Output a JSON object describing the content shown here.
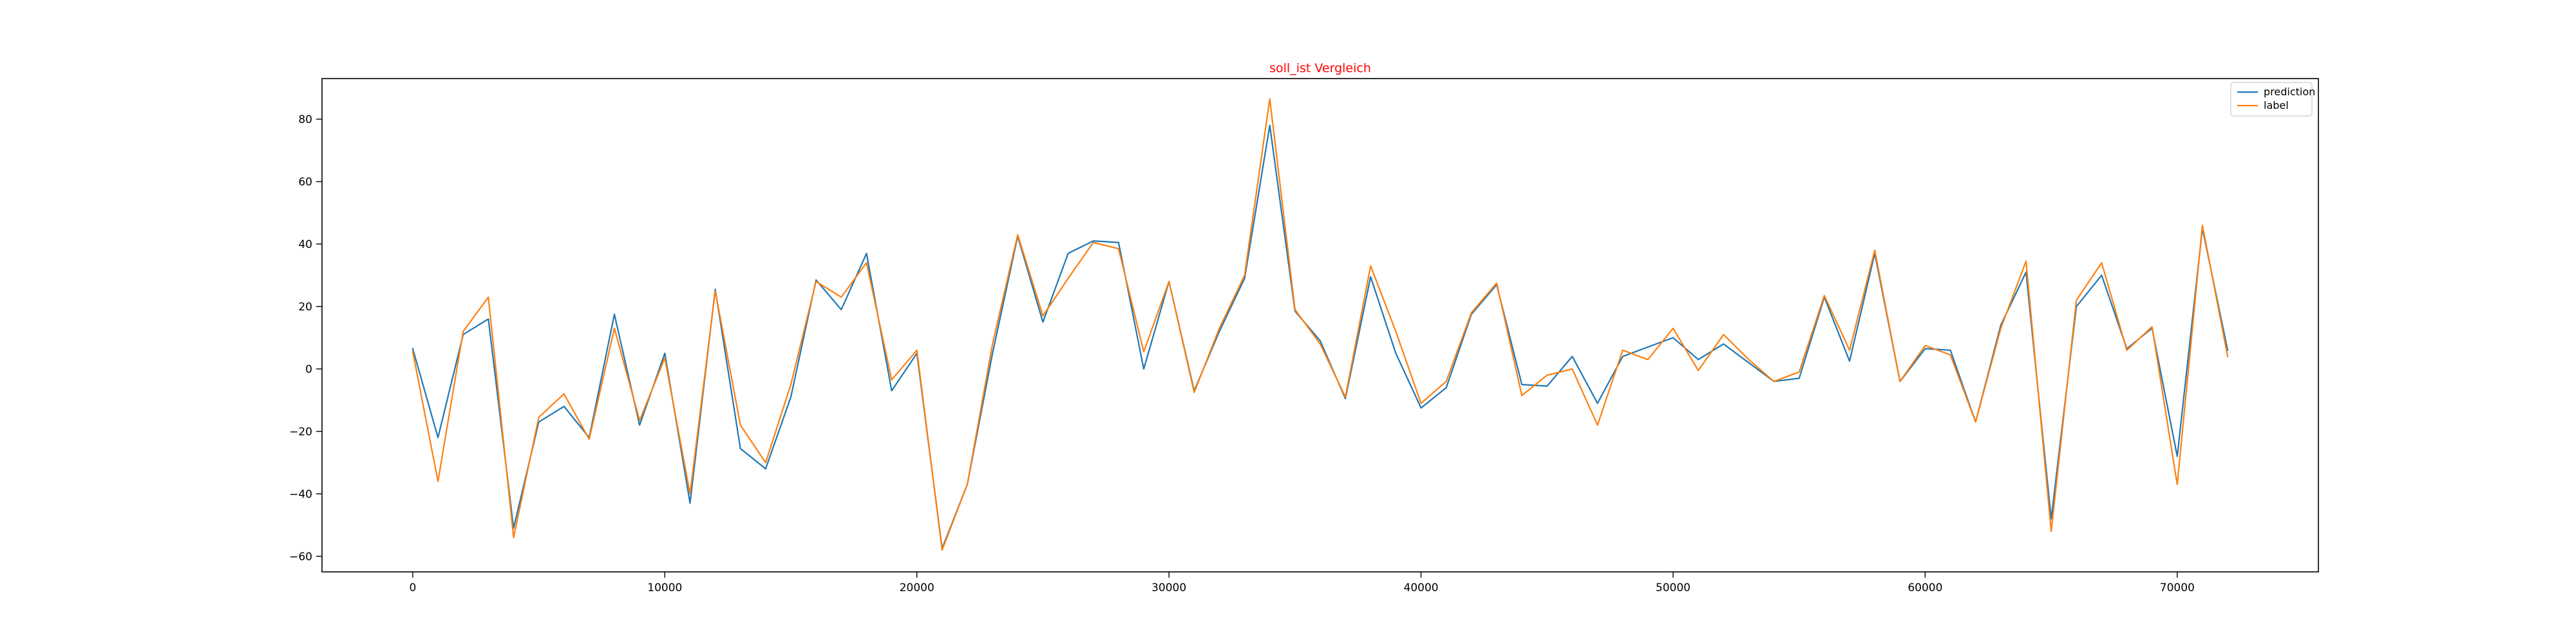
{
  "chart_data": {
    "type": "line",
    "title": "soll_ist Vergleich",
    "xlabel": "",
    "ylabel": "",
    "xlim": [
      -3600,
      75600
    ],
    "ylim": [
      -65,
      93
    ],
    "xticks": [
      0,
      10000,
      20000,
      30000,
      40000,
      50000,
      60000,
      70000
    ],
    "xtick_labels": [
      "0",
      "10000",
      "20000",
      "30000",
      "40000",
      "50000",
      "60000",
      "70000"
    ],
    "yticks": [
      -60,
      -40,
      -20,
      0,
      20,
      40,
      60,
      80
    ],
    "ytick_labels": [
      "−60",
      "−40",
      "−20",
      "0",
      "20",
      "40",
      "60",
      "80"
    ],
    "grid": false,
    "legend_position": "top-right",
    "x": [
      0,
      1000,
      2000,
      3000,
      4000,
      5000,
      6000,
      7000,
      8000,
      9000,
      10000,
      11000,
      12000,
      13000,
      14000,
      15000,
      16000,
      17000,
      18000,
      19000,
      20000,
      21000,
      22000,
      23000,
      24000,
      25000,
      26000,
      27000,
      28000,
      29000,
      30000,
      31000,
      32000,
      33000,
      34000,
      35000,
      36000,
      37000,
      38000,
      39000,
      40000,
      41000,
      42000,
      43000,
      44000,
      45000,
      46000,
      47000,
      48000,
      49000,
      50000,
      51000,
      52000,
      53000,
      54000,
      55000,
      56000,
      57000,
      58000,
      59000,
      60000,
      61000,
      62000,
      63000,
      64000,
      65000,
      66000,
      67000,
      68000,
      69000,
      70000,
      71000,
      72000
    ],
    "series": [
      {
        "name": "prediction",
        "color": "#1f77b4",
        "values": [
          6.5,
          -22,
          11,
          16,
          -51,
          -17,
          -12,
          -22,
          17.5,
          -18,
          5,
          -43,
          25.5,
          -25.5,
          -32,
          -9,
          28.5,
          19,
          37,
          -7,
          5,
          -57.5,
          -37,
          5,
          42.5,
          15,
          37,
          41,
          40.5,
          0,
          28,
          -7,
          12,
          29,
          78,
          18.5,
          9,
          -9.5,
          29.5,
          5,
          -12.5,
          -6,
          17.5,
          27,
          -5,
          -5.5,
          4,
          -11,
          4,
          7,
          10,
          3,
          8,
          2,
          -4,
          -3,
          23,
          2.5,
          37,
          -4,
          6.5,
          6,
          -17,
          14,
          31,
          -48,
          20,
          30,
          6.5,
          13,
          -28,
          45,
          6
        ]
      },
      {
        "name": "label",
        "color": "#ff7f0e",
        "values": [
          5.5,
          -36,
          12,
          23,
          -54,
          -15.5,
          -8,
          -22.5,
          13,
          -16.5,
          3.5,
          -40,
          25,
          -18,
          -30,
          -5,
          28,
          23,
          34,
          -3.5,
          6,
          -58,
          -37,
          8,
          43,
          17,
          29,
          40.5,
          38.5,
          5.5,
          28,
          -7.5,
          13,
          30,
          86.5,
          19,
          8,
          -9,
          33,
          12,
          -11,
          -4,
          18,
          27.5,
          -8.5,
          -2,
          0,
          -18,
          6,
          3,
          13,
          -0.5,
          11,
          3,
          -4,
          -1,
          23.5,
          6,
          38,
          -4,
          7.5,
          4.5,
          -17,
          13,
          34.5,
          -52,
          22,
          34,
          6,
          13.5,
          -37,
          46,
          4
        ]
      }
    ]
  }
}
